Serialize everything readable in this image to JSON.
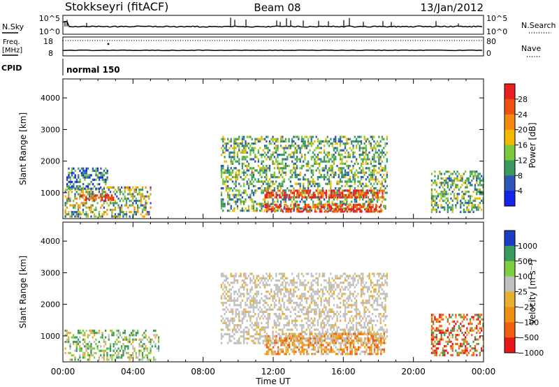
{
  "header": {
    "station": "Stokkseyri (fitACF)",
    "beam": "Beam 08",
    "date": "13/Jan/2012"
  },
  "params": {
    "nsky_label": "N.Sky",
    "nsearch_label": "N.Search",
    "nsky_ticks": [
      "10^5",
      "10^0"
    ],
    "nsearch_ticks": [
      "10^5",
      "10^0"
    ],
    "freq_label_1": "Freq.",
    "freq_label_2": "[MHz]",
    "freq_ticks": [
      "18",
      "8"
    ],
    "nave_label": "Nave",
    "nave_ticks": [
      "80",
      "0"
    ],
    "cpid_label": "CPID",
    "cpid_value": "normal 150"
  },
  "chart_data": [
    {
      "type": "heatmap",
      "name": "power",
      "xlabel": "",
      "ylabel": "Slant Range [km]",
      "xlim": [
        0,
        24
      ],
      "ylim": [
        180,
        4600
      ],
      "yticks": [
        1000,
        2000,
        3000,
        4000
      ],
      "colorbar": {
        "label": "Power [dB]",
        "tick_labels": [
          "28",
          "24",
          "20",
          "16",
          "12",
          "8",
          "4"
        ],
        "colors": [
          "#e82020",
          "#f05010",
          "#f58a10",
          "#f5b800",
          "#7cc83c",
          "#3a9b5e",
          "#2e58b8",
          "#1424e8"
        ]
      },
      "echo_regions": [
        {
          "t0": 0.1,
          "t1": 5.0,
          "r0": 220,
          "r1": 1200,
          "level": "mid-high"
        },
        {
          "t0": 1.0,
          "t1": 3.0,
          "r0": 800,
          "r1": 950,
          "level": "high"
        },
        {
          "t0": 0.2,
          "t1": 2.5,
          "r0": 1100,
          "r1": 1800,
          "level": "low"
        },
        {
          "t0": 9.0,
          "t1": 18.5,
          "r0": 400,
          "r1": 2800,
          "level": "mid"
        },
        {
          "t0": 11.5,
          "t1": 18.3,
          "r0": 850,
          "r1": 1100,
          "level": "high"
        },
        {
          "t0": 11.5,
          "t1": 18.3,
          "r0": 400,
          "r1": 650,
          "level": "high"
        },
        {
          "t0": 21.0,
          "t1": 24.0,
          "r0": 400,
          "r1": 1700,
          "level": "mid"
        }
      ]
    },
    {
      "type": "heatmap",
      "name": "velocity",
      "xlabel": "Time UT",
      "ylabel": "Slant Range [km]",
      "xlim": [
        0,
        24
      ],
      "ylim": [
        180,
        4600
      ],
      "xticks": [
        0,
        4,
        8,
        12,
        16,
        20,
        24
      ],
      "xtick_labels": [
        "00:00",
        "04:00",
        "08:00",
        "12:00",
        "16:00",
        "20:00",
        "00:00"
      ],
      "yticks": [
        1000,
        2000,
        3000,
        4000
      ],
      "colorbar": {
        "label": "Velocity [m s⁻¹]",
        "tick_labels": [
          "1000",
          "500",
          "100",
          "25",
          "−25",
          "−100",
          "−500",
          "−1000"
        ],
        "colors": [
          "#1c3cc8",
          "#3a9b5e",
          "#7ed040",
          "#c0c0c0",
          "#e8b030",
          "#f09010",
          "#f06010",
          "#e81818"
        ]
      },
      "echo_regions": [
        {
          "t0": 0.1,
          "t1": 5.5,
          "r0": 220,
          "r1": 1200,
          "level": "green-grey"
        },
        {
          "t0": 9.0,
          "t1": 18.5,
          "r0": 800,
          "r1": 3000,
          "level": "grey"
        },
        {
          "t0": 11.5,
          "t1": 18.3,
          "r0": 400,
          "r1": 1100,
          "level": "orange"
        },
        {
          "t0": 21.0,
          "t1": 24.0,
          "r0": 400,
          "r1": 1700,
          "level": "red-orange"
        }
      ]
    }
  ]
}
